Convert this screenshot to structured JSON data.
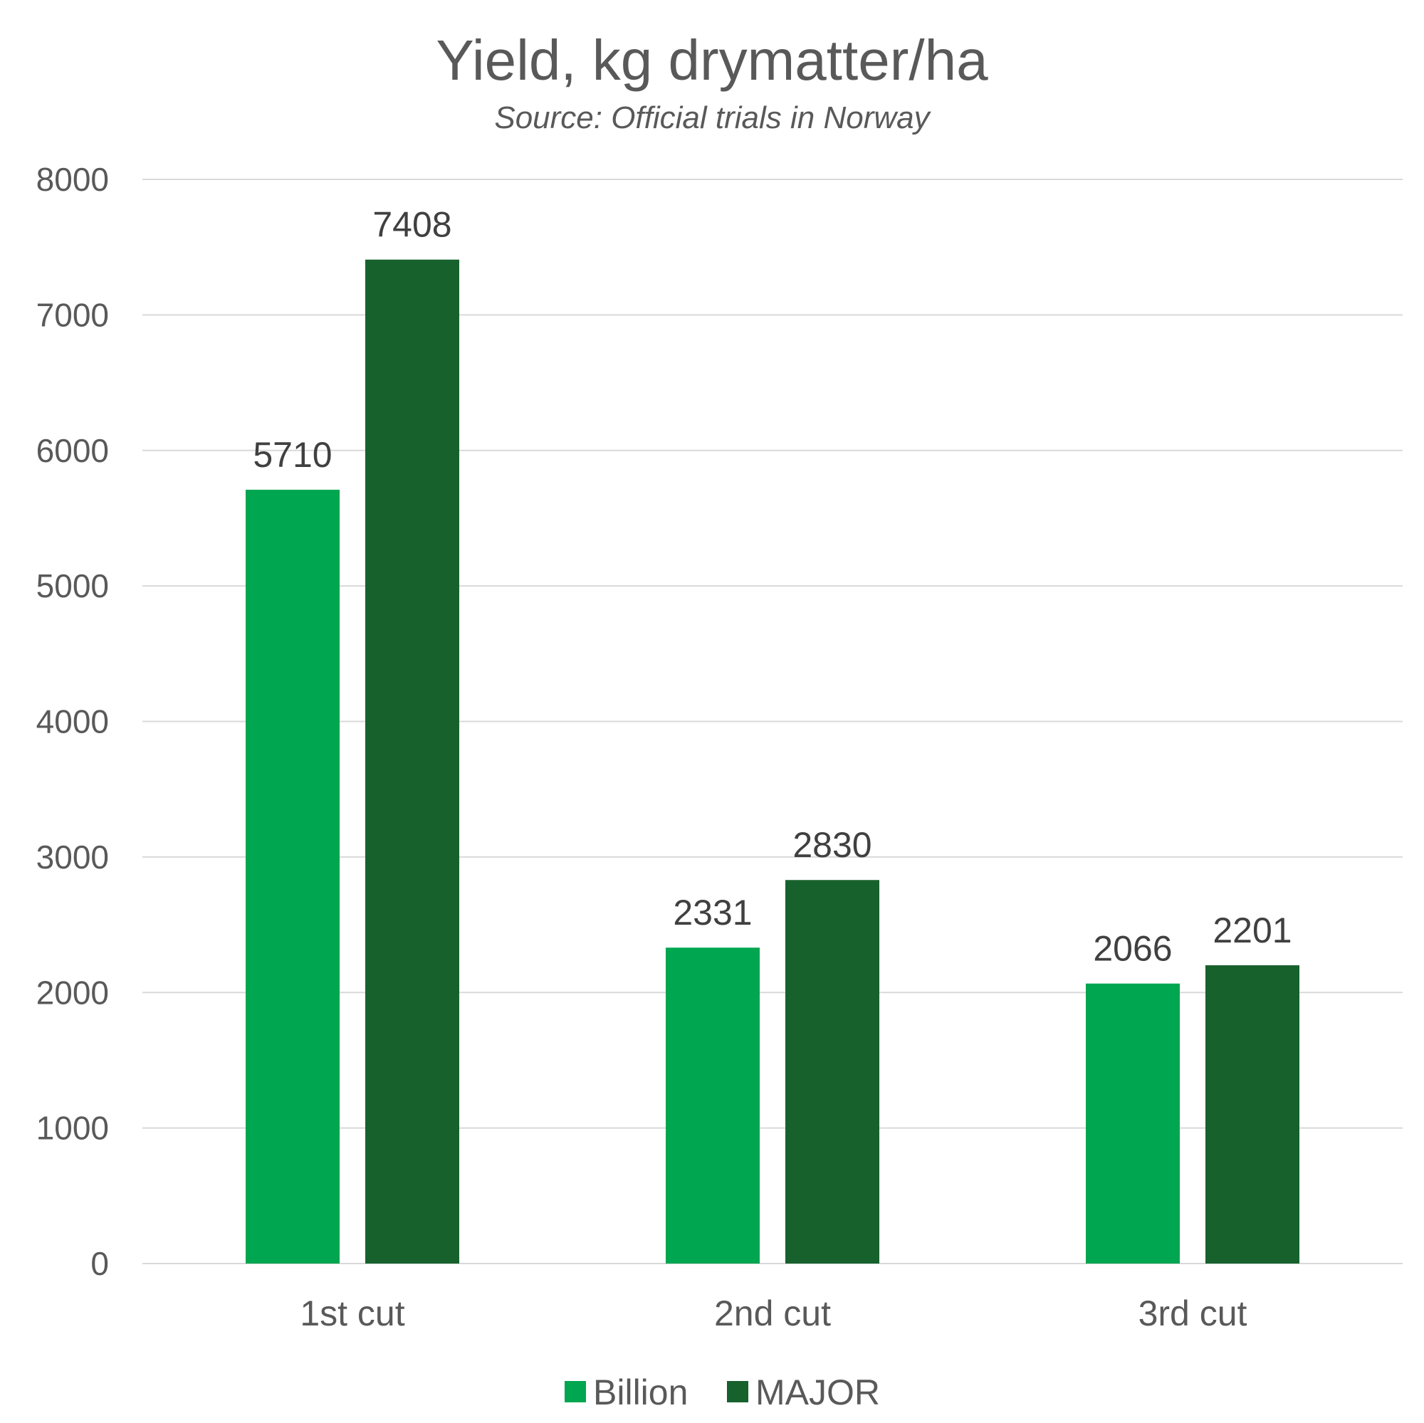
{
  "chart_data": {
    "type": "bar",
    "title": "Yield, kg drymatter/ha",
    "subtitle": "Source: Official trials in Norway",
    "categories": [
      "1st cut",
      "2nd cut",
      "3rd cut"
    ],
    "series": [
      {
        "name": "Billion",
        "color": "#00a650",
        "values": [
          5710,
          2331,
          2066
        ]
      },
      {
        "name": "MAJOR",
        "color": "#17612d",
        "values": [
          7408,
          2830,
          2201
        ]
      }
    ],
    "ylim": [
      0,
      8000
    ],
    "yticks": [
      "0",
      "1000",
      "2000",
      "3000",
      "4000",
      "5000",
      "6000",
      "7000",
      "8000"
    ],
    "xlabel": "",
    "ylabel": "",
    "grid": true,
    "legend": "bottom"
  }
}
